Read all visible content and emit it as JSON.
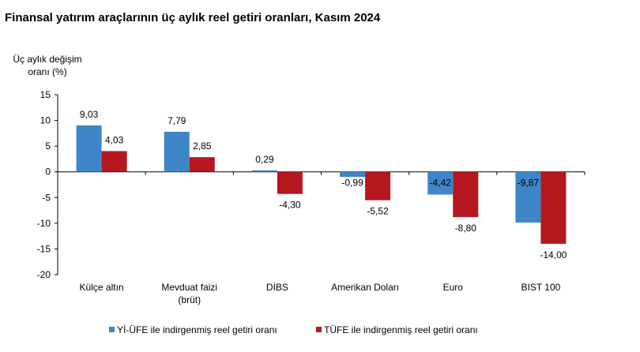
{
  "chart_data": {
    "type": "bar",
    "title": "Finansal yatırım araçlarının üç aylık reel getiri oranları, Kasım 2024",
    "ylabel_lines": [
      "Üç aylık değişim",
      "oranı (%)"
    ],
    "ylim": [
      -20,
      15
    ],
    "yticks": [
      15,
      10,
      5,
      0,
      -5,
      -10,
      -15,
      -20
    ],
    "grid": false,
    "legend_position": "bottom",
    "categories": [
      [
        "Külçe altın"
      ],
      [
        "Mevduat faizi",
        "(brüt)"
      ],
      [
        "DİBS"
      ],
      [
        "Amerikan Doları"
      ],
      [
        "Euro"
      ],
      [
        "BIST 100"
      ]
    ],
    "series": [
      {
        "name": "Yİ-ÜFE ile indirgenmiş reel getiri oranı",
        "color": "#3e86c7",
        "values": [
          9.03,
          7.79,
          0.29,
          -0.99,
          -4.42,
          -9.87
        ],
        "labels": [
          "9,03",
          "7,79",
          "0,29",
          "-0,99",
          "-4,42",
          "-9,87"
        ]
      },
      {
        "name": "TÜFE ile indirgenmiş reel getiri oranı",
        "color": "#b5171e",
        "values": [
          4.03,
          2.85,
          -4.3,
          -5.52,
          -8.8,
          -14.0
        ],
        "labels": [
          "4,03",
          "2,85",
          "-4,30",
          "-5,52",
          "-8,80",
          "-14,00"
        ]
      }
    ]
  }
}
